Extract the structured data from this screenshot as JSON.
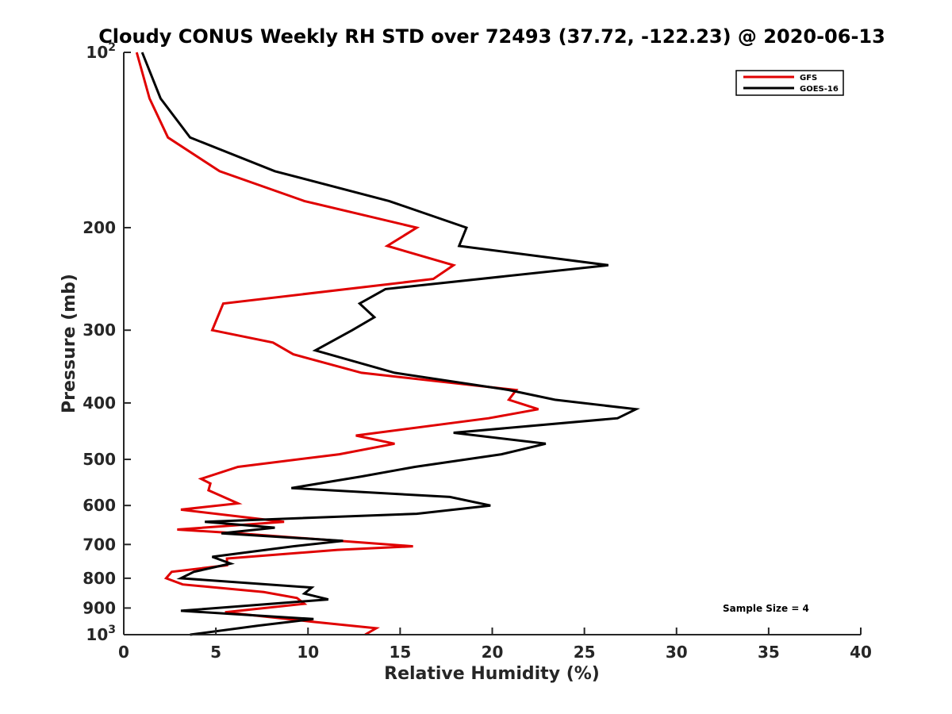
{
  "chart_data": {
    "type": "line",
    "title": "Cloudy CONUS Weekly RH STD over 72493 (37.72, -122.23) @ 2020-06-13",
    "xlabel": "Relative Humidity (%)",
    "ylabel": "Pressure (mb)",
    "xlim": [
      0,
      40
    ],
    "ylim": [
      100,
      1000
    ],
    "y_scale": "log",
    "y_reversed": true,
    "x_ticks": [
      0,
      5,
      10,
      15,
      20,
      25,
      30,
      35,
      40
    ],
    "y_ticks": [
      {
        "value": 100,
        "label": "10",
        "sup": "2"
      },
      {
        "value": 200,
        "label": "200",
        "sup": ""
      },
      {
        "value": 300,
        "label": "300",
        "sup": ""
      },
      {
        "value": 400,
        "label": "400",
        "sup": ""
      },
      {
        "value": 500,
        "label": "500",
        "sup": ""
      },
      {
        "value": 600,
        "label": "600",
        "sup": ""
      },
      {
        "value": 700,
        "label": "700",
        "sup": ""
      },
      {
        "value": 800,
        "label": "800",
        "sup": ""
      },
      {
        "value": 900,
        "label": "900",
        "sup": ""
      },
      {
        "value": 1000,
        "label": "10",
        "sup": "3"
      }
    ],
    "grid": false,
    "legend_position": "top-right",
    "annotation": "Sample Size = 4",
    "series": [
      {
        "name": "GFS",
        "color": "#e00000",
        "points": [
          [
            0.7,
            100
          ],
          [
            1.4,
            120
          ],
          [
            2.4,
            140
          ],
          [
            5.2,
            160
          ],
          [
            9.8,
            180
          ],
          [
            15.9,
            200
          ],
          [
            14.3,
            215
          ],
          [
            17.9,
            232
          ],
          [
            16.8,
            245
          ],
          [
            5.4,
            270
          ],
          [
            4.8,
            300
          ],
          [
            8.1,
            315
          ],
          [
            9.2,
            330
          ],
          [
            12.9,
            355
          ],
          [
            21.3,
            380
          ],
          [
            20.9,
            395
          ],
          [
            22.5,
            410
          ],
          [
            19.8,
            425
          ],
          [
            12.6,
            455
          ],
          [
            14.7,
            470
          ],
          [
            11.7,
            490
          ],
          [
            6.2,
            515
          ],
          [
            4.2,
            540
          ],
          [
            4.7,
            550
          ],
          [
            4.6,
            565
          ],
          [
            6.2,
            595
          ],
          [
            3.1,
            610
          ],
          [
            8.7,
            640
          ],
          [
            2.9,
            660
          ],
          [
            6.2,
            670
          ],
          [
            15.7,
            705
          ],
          [
            11.6,
            715
          ],
          [
            5.6,
            740
          ],
          [
            5.6,
            760
          ],
          [
            2.6,
            780
          ],
          [
            2.3,
            800
          ],
          [
            3.2,
            820
          ],
          [
            7.6,
            845
          ],
          [
            9.4,
            865
          ],
          [
            9.8,
            885
          ],
          [
            5.5,
            915
          ],
          [
            10.2,
            950
          ],
          [
            13.7,
            975
          ],
          [
            13.1,
            1000
          ]
        ]
      },
      {
        "name": "GOES-16",
        "color": "#000000",
        "points": [
          [
            1.0,
            100
          ],
          [
            2.0,
            120
          ],
          [
            3.6,
            140
          ],
          [
            8.2,
            160
          ],
          [
            14.4,
            180
          ],
          [
            18.6,
            200
          ],
          [
            18.2,
            215
          ],
          [
            26.3,
            232
          ],
          [
            14.2,
            255
          ],
          [
            12.8,
            270
          ],
          [
            13.6,
            285
          ],
          [
            12.4,
            300
          ],
          [
            10.4,
            325
          ],
          [
            14.7,
            355
          ],
          [
            20.9,
            380
          ],
          [
            23.4,
            395
          ],
          [
            27.8,
            410
          ],
          [
            26.8,
            425
          ],
          [
            17.9,
            450
          ],
          [
            22.9,
            470
          ],
          [
            20.5,
            490
          ],
          [
            15.8,
            515
          ],
          [
            12.9,
            535
          ],
          [
            9.1,
            560
          ],
          [
            17.7,
            580
          ],
          [
            19.9,
            600
          ],
          [
            15.9,
            620
          ],
          [
            4.4,
            640
          ],
          [
            8.2,
            655
          ],
          [
            5.3,
            670
          ],
          [
            11.9,
            690
          ],
          [
            9.2,
            705
          ],
          [
            4.8,
            735
          ],
          [
            5.8,
            755
          ],
          [
            3.8,
            780
          ],
          [
            3.1,
            800
          ],
          [
            10.2,
            830
          ],
          [
            9.8,
            850
          ],
          [
            11.1,
            870
          ],
          [
            3.1,
            910
          ],
          [
            10.3,
            940
          ],
          [
            7.3,
            965
          ],
          [
            3.6,
            1000
          ]
        ]
      }
    ]
  }
}
